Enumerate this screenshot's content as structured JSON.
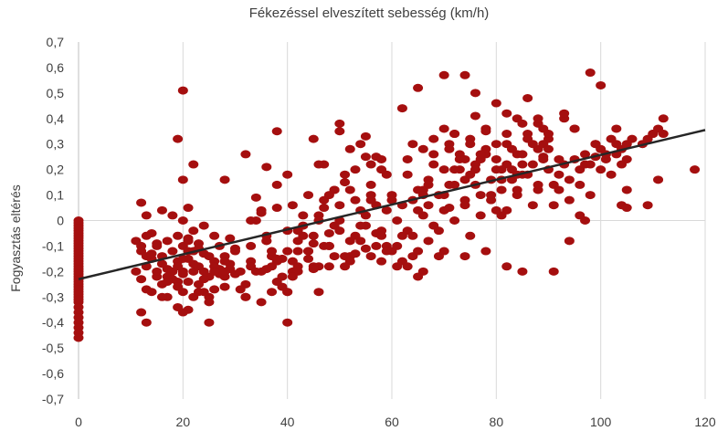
{
  "chart_data": {
    "type": "scatter",
    "title": "Fékezéssel elveszített sebesség (km/h)",
    "xlabel": "",
    "ylabel": "Fogyasztás eltérés",
    "xlim": [
      0,
      120
    ],
    "ylim": [
      -0.7,
      0.7
    ],
    "x_ticks": [
      0,
      20,
      40,
      60,
      80,
      100,
      120
    ],
    "y_ticks": [
      0.7,
      0.6,
      0.5,
      0.4,
      0.3,
      0.2,
      0.1,
      0,
      -0.1,
      -0.2,
      -0.3,
      -0.4,
      -0.5,
      -0.6,
      -0.7
    ],
    "y_tick_labels": [
      "0,7",
      "0,6",
      "0,5",
      "0,4",
      "0,3",
      "0,2",
      "0,1",
      "0",
      "-0,1",
      "-0,2",
      "-0,3",
      "-0,4",
      "-0,5",
      "-0,6",
      "-0,7"
    ],
    "x_tick_labels": [
      "0",
      "20",
      "40",
      "60",
      "80",
      "100",
      "120"
    ],
    "grid": "vertical",
    "marker_color": "#A50F0F",
    "trendline_color": "#262626",
    "trendline": {
      "type": "linear",
      "x": [
        0,
        120
      ],
      "y": [
        -0.23,
        0.355
      ]
    },
    "series": [
      {
        "x": [
          0,
          0,
          0,
          0,
          0,
          0,
          0,
          0,
          0,
          0,
          0,
          0,
          0,
          0,
          0,
          0,
          0,
          0,
          0,
          0,
          0,
          0,
          0,
          0,
          0,
          0,
          0,
          0,
          0,
          0,
          0,
          0,
          0,
          0,
          0,
          0,
          0,
          0,
          0,
          0,
          11,
          11,
          12,
          12,
          12,
          13,
          13,
          13,
          14,
          14,
          14,
          15,
          15,
          16,
          16,
          16,
          17,
          17,
          17,
          18,
          18,
          18,
          19,
          19,
          19,
          19,
          20,
          20,
          20,
          20,
          21,
          21,
          21,
          21,
          22,
          22,
          22,
          23,
          23,
          23,
          24,
          24,
          25,
          25,
          26,
          26,
          27,
          27,
          28,
          28,
          29,
          29,
          30,
          30,
          13,
          15,
          17,
          19,
          20,
          21,
          22,
          24,
          25,
          26,
          27,
          28,
          29,
          12,
          14,
          16,
          18,
          19,
          21,
          23,
          24,
          26,
          28,
          30,
          13,
          15,
          17,
          20,
          22,
          24,
          26,
          28,
          19,
          20,
          20,
          21,
          22,
          23,
          25,
          28,
          13,
          12,
          16,
          20,
          25,
          31,
          32,
          33,
          34,
          35,
          36,
          37,
          38,
          39,
          40,
          41,
          42,
          43,
          44,
          45,
          46,
          47,
          48,
          49,
          50,
          51,
          52,
          53,
          54,
          55,
          56,
          57,
          58,
          59,
          60,
          32,
          33,
          34,
          35,
          36,
          37,
          38,
          39,
          40,
          41,
          42,
          43,
          44,
          45,
          46,
          47,
          48,
          49,
          50,
          51,
          52,
          53,
          54,
          55,
          56,
          57,
          58,
          59,
          31,
          33,
          35,
          37,
          39,
          41,
          43,
          45,
          47,
          49,
          51,
          53,
          55,
          57,
          59,
          32,
          34,
          36,
          38,
          40,
          42,
          44,
          46,
          48,
          50,
          52,
          54,
          56,
          58,
          60,
          33,
          36,
          38,
          40,
          42,
          45,
          47,
          50,
          52,
          55,
          57,
          40,
          38,
          36,
          44,
          46,
          48,
          50,
          52,
          54,
          56,
          58,
          32,
          37,
          40,
          42,
          46,
          49,
          51,
          55,
          58,
          60,
          35,
          38,
          41,
          45,
          48,
          53,
          56,
          59,
          61,
          62,
          63,
          64,
          65,
          66,
          67,
          68,
          69,
          70,
          71,
          72,
          73,
          74,
          75,
          76,
          77,
          78,
          79,
          80,
          81,
          82,
          83,
          84,
          85,
          86,
          87,
          88,
          89,
          90,
          61,
          62,
          63,
          64,
          65,
          66,
          67,
          68,
          69,
          70,
          71,
          72,
          73,
          74,
          75,
          76,
          77,
          78,
          79,
          80,
          81,
          82,
          83,
          84,
          85,
          86,
          87,
          88,
          89,
          90,
          61,
          63,
          65,
          67,
          69,
          71,
          73,
          75,
          77,
          79,
          81,
          83,
          85,
          87,
          89,
          62,
          64,
          66,
          68,
          70,
          72,
          74,
          76,
          78,
          80,
          82,
          84,
          86,
          88,
          90,
          62,
          65,
          68,
          70,
          72,
          74,
          76,
          78,
          80,
          82,
          84,
          86,
          88,
          64,
          66,
          70,
          74,
          78,
          82,
          85,
          65,
          66,
          70,
          72,
          74,
          75,
          76,
          80,
          82,
          85,
          88,
          63,
          67,
          71,
          77,
          81,
          84,
          89,
          91,
          92,
          93,
          94,
          95,
          96,
          97,
          98,
          99,
          100,
          101,
          102,
          103,
          104,
          105,
          106,
          108,
          109,
          110,
          111,
          112,
          91,
          92,
          93,
          94,
          95,
          96,
          97,
          98,
          99,
          100,
          101,
          102,
          103,
          104,
          105,
          91,
          93,
          95,
          97,
          99,
          103,
          105,
          109,
          110,
          111,
          112,
          118,
          98,
          100,
          90,
          92,
          94,
          96,
          104,
          105
        ],
        "y": [
          0,
          -0.02,
          -0.04,
          -0.06,
          -0.08,
          -0.1,
          -0.12,
          -0.14,
          -0.16,
          -0.18,
          -0.2,
          -0.22,
          -0.24,
          -0.26,
          -0.28,
          -0.3,
          -0.32,
          -0.34,
          -0.36,
          -0.38,
          -0.4,
          -0.42,
          -0.44,
          -0.46,
          -0.01,
          -0.03,
          -0.05,
          -0.07,
          -0.09,
          -0.11,
          -0.13,
          -0.15,
          -0.17,
          -0.19,
          -0.21,
          -0.23,
          -0.25,
          -0.27,
          -0.29,
          -0.31,
          -0.08,
          -0.2,
          -0.12,
          -0.23,
          0.07,
          -0.18,
          -0.27,
          0.02,
          -0.15,
          -0.28,
          -0.05,
          -0.1,
          -0.22,
          -0.14,
          -0.25,
          0.04,
          -0.08,
          -0.19,
          -0.3,
          -0.12,
          -0.2,
          0.02,
          -0.06,
          -0.16,
          -0.24,
          -0.34,
          -0.1,
          -0.2,
          -0.28,
          0.0,
          -0.07,
          -0.15,
          -0.24,
          0.05,
          -0.12,
          -0.2,
          -0.3,
          -0.09,
          -0.18,
          -0.25,
          -0.02,
          -0.13,
          -0.22,
          -0.3,
          -0.06,
          -0.16,
          -0.1,
          -0.19,
          -0.14,
          -0.22,
          -0.07,
          -0.17,
          -0.11,
          -0.21,
          -0.14,
          -0.2,
          -0.22,
          -0.18,
          -0.15,
          -0.12,
          -0.17,
          -0.2,
          -0.14,
          -0.18,
          -0.21,
          -0.16,
          -0.19,
          -0.1,
          -0.13,
          -0.17,
          -0.23,
          -0.26,
          -0.08,
          -0.11,
          -0.23,
          -0.27,
          -0.2,
          -0.12,
          -0.06,
          -0.09,
          -0.24,
          -0.21,
          -0.04,
          -0.28,
          -0.2,
          -0.26,
          0.32,
          0.51,
          0.16,
          -0.35,
          0.22,
          -0.28,
          -0.4,
          0.16,
          -0.4,
          -0.36,
          -0.3,
          -0.36,
          -0.32,
          -0.2,
          0.26,
          -0.1,
          0.0,
          0.03,
          -0.06,
          -0.14,
          0.05,
          -0.15,
          -0.04,
          0.06,
          -0.12,
          -0.02,
          0.1,
          -0.09,
          0.02,
          0.08,
          -0.05,
          0.12,
          0.0,
          0.15,
          -0.08,
          0.2,
          0.04,
          -0.02,
          0.22,
          0.06,
          -0.04,
          0.18,
          0.1,
          -0.25,
          -0.16,
          0.09,
          -0.2,
          -0.08,
          -0.18,
          0.14,
          -0.22,
          -0.12,
          -0.2,
          -0.08,
          0.02,
          -0.15,
          -0.06,
          -0.18,
          0.05,
          -0.1,
          0.12,
          -0.04,
          0.18,
          -0.14,
          0.08,
          -0.02,
          0.25,
          0.1,
          -0.05,
          0.2,
          -0.1,
          -0.27,
          -0.18,
          0.04,
          -0.12,
          -0.26,
          -0.16,
          -0.06,
          -0.18,
          -0.1,
          -0.02,
          -0.14,
          -0.06,
          0.02,
          -0.1,
          0.04,
          -0.3,
          -0.2,
          -0.08,
          -0.16,
          -0.28,
          -0.04,
          -0.12,
          0.0,
          -0.1,
          0.06,
          -0.16,
          -0.08,
          0.14,
          -0.06,
          0.08,
          0.0,
          0.21,
          0.35,
          0.18,
          -0.18,
          0.32,
          0.22,
          0.38,
          0.12,
          0.33,
          0.25,
          -0.4,
          -0.15,
          -0.19,
          -0.12,
          0.22,
          0.1,
          0.35,
          0.28,
          0.3,
          0.08,
          0.24,
          -0.3,
          -0.28,
          -0.28,
          -0.2,
          -0.28,
          -0.14,
          -0.18,
          -0.11,
          -0.16,
          -0.12,
          -0.32,
          -0.24,
          -0.22,
          -0.19,
          -0.18,
          -0.13,
          -0.14,
          -0.12,
          0.0,
          0.06,
          -0.04,
          0.08,
          0.12,
          0.02,
          0.16,
          -0.02,
          0.1,
          0.2,
          0.05,
          0.14,
          0.26,
          0.08,
          0.18,
          0.22,
          0.1,
          0.28,
          0.16,
          0.24,
          0.12,
          0.3,
          0.2,
          0.26,
          0.18,
          0.34,
          0.22,
          0.28,
          0.25,
          0.32,
          -0.1,
          -0.06,
          0.18,
          -0.14,
          0.04,
          0.28,
          -0.08,
          0.22,
          -0.04,
          0.1,
          0.3,
          0.0,
          0.24,
          0.06,
          0.32,
          0.14,
          0.02,
          0.26,
          0.08,
          0.2,
          0.16,
          0.04,
          0.28,
          0.1,
          0.22,
          0.18,
          0.3,
          0.12,
          0.24,
          0.2,
          -0.18,
          0.24,
          -0.12,
          0.06,
          -0.14,
          0.14,
          0.2,
          -0.06,
          0.24,
          0.1,
          0.02,
          0.16,
          0.26,
          0.06,
          0.3,
          -0.16,
          0.3,
          0.12,
          0.26,
          0.04,
          0.34,
          0.16,
          0.2,
          0.36,
          0.04,
          0.22,
          0.12,
          0.32,
          0.14,
          0.28,
          0.44,
          0.52,
          0.32,
          0.57,
          0.34,
          0.57,
          0.5,
          0.35,
          0.46,
          0.42,
          0.4,
          0.48,
          0.38,
          -0.06,
          -0.2,
          -0.12,
          -0.14,
          -0.12,
          -0.18,
          -0.2,
          -0.22,
          0.1,
          0.36,
          0.2,
          0.24,
          0.3,
          0.41,
          0.3,
          0.34,
          0.38,
          0.4,
          -0.18,
          0.14,
          0.28,
          0.26,
          0.2,
          0.18,
          0.36,
          0.14,
          0.18,
          0.22,
          0.16,
          0.24,
          0.2,
          0.26,
          0.22,
          0.3,
          0.28,
          0.24,
          0.32,
          0.26,
          0.28,
          0.3,
          0.32,
          0.3,
          0.32,
          0.34,
          0.36,
          0.34,
          0.06,
          0.12,
          0.4,
          0.08,
          0.36,
          0.14,
          0.22,
          0.1,
          0.25,
          0.2,
          0.26,
          0.18,
          0.3,
          0.22,
          0.24,
          -0.2,
          0.42,
          0.36,
          0.0,
          0.3,
          0.36,
          0.12,
          0.06,
          0.34,
          0.16,
          0.4,
          0.2,
          0.58,
          0.53,
          0.34,
          0.24,
          -0.08,
          0.02,
          0.06,
          0.05
        ]
      }
    ]
  }
}
